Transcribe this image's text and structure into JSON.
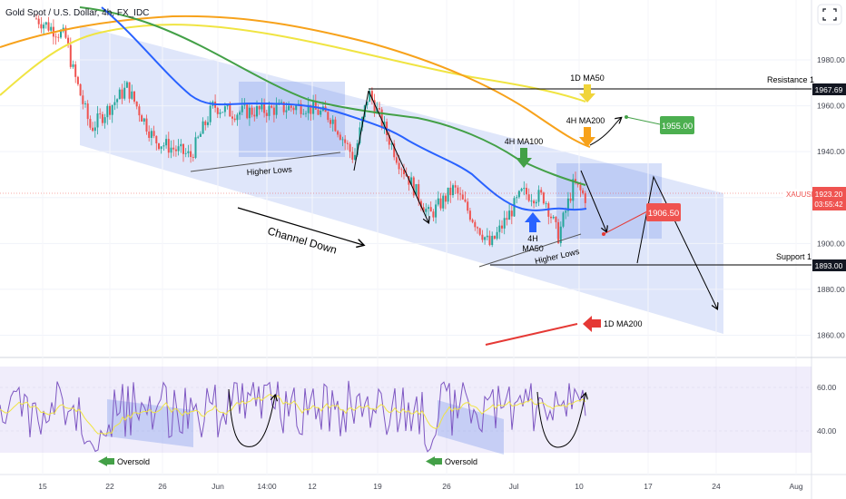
{
  "header": {
    "title": "Gold Spot / U.S. Dollar, 4h, FX_IDC"
  },
  "chart_data": {
    "type": "candlestick",
    "symbol": "XAUUSD",
    "last_price": "1923.20",
    "countdown": "03:55:42",
    "ylim": [
      1852,
      2000
    ],
    "y_ticks": [
      "1980.00",
      "1960.00",
      "1940.00",
      "1920.00",
      "1900.00",
      "1880.00",
      "1860.00"
    ],
    "x_ticks": [
      "15",
      "22",
      "26",
      "Jun",
      "14:00",
      "12",
      "19",
      "26",
      "Jul",
      "10",
      "17",
      "24",
      "Aug"
    ],
    "levels": [
      {
        "label": "Resistance 1",
        "value": "1967.69"
      },
      {
        "label": "Support 1",
        "value": "1893.00"
      }
    ],
    "target": "1955.00",
    "projection_value": "1906.50",
    "annotations": [
      "1D MA50",
      "4H MA200",
      "4H MA100",
      "4H",
      "MA50",
      "1D MA200",
      "Higher Lows",
      "Higher Lows",
      "Channel Down"
    ],
    "series": [
      {
        "name": "4H MA50",
        "color": "#2962ff"
      },
      {
        "name": "4H MA100",
        "color": "#43a047"
      },
      {
        "name": "4H MA200",
        "color": "#f7a21b"
      },
      {
        "name": "1D MA50",
        "color": "#f0e442"
      },
      {
        "name": "1D MA200",
        "color": "#e53935"
      }
    ],
    "rsi": {
      "y_ticks": [
        "60.00",
        "40.00"
      ],
      "labels": [
        "Oversold",
        "Oversold"
      ]
    }
  },
  "colors": {
    "up": "#26a69a",
    "down": "#ef5350",
    "channel": "rgba(120,150,235,0.24)"
  }
}
